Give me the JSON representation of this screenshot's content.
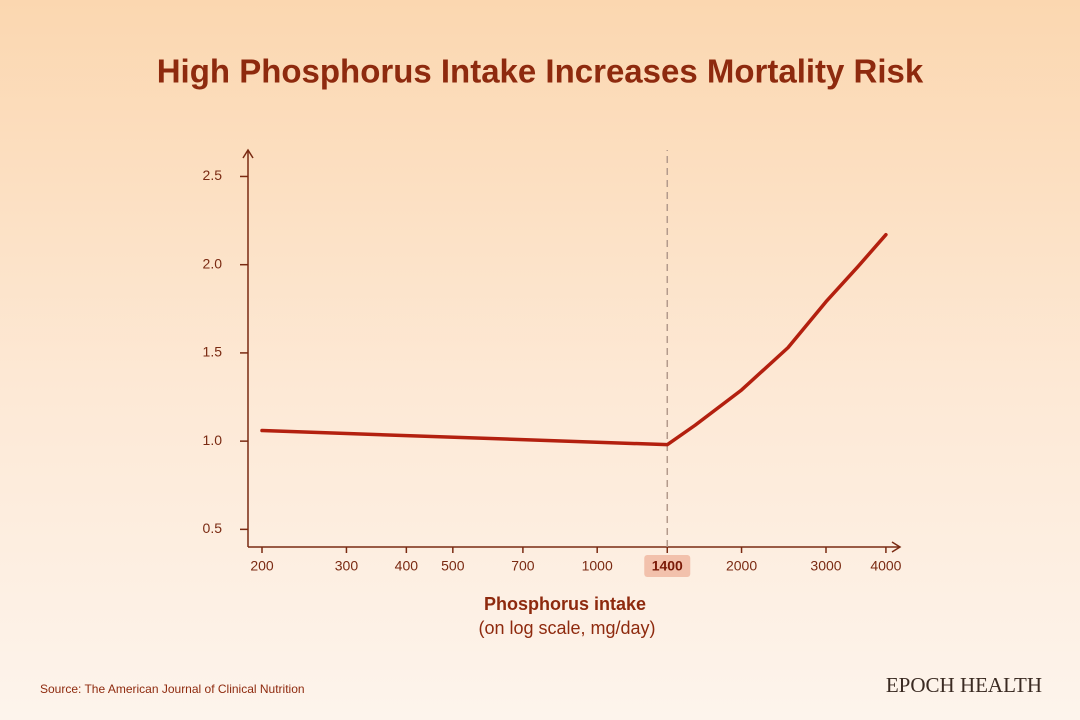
{
  "chart_data": {
    "type": "line",
    "title": "High Phosphorus Intake Increases Mortality Risk",
    "x_label": "Phosphorus intake",
    "x_sublabel": "(on log scale, mg/day)",
    "source": "Source: The American Journal of Clinical Nutrition",
    "brand": "EPOCH HEALTH",
    "x_scale": "log",
    "xlim": [
      187,
      4280
    ],
    "ylim": [
      0.4,
      2.65
    ],
    "xticks": [
      200,
      300,
      400,
      500,
      700,
      1000,
      1400,
      2000,
      3000,
      4000
    ],
    "yticks": [
      0.5,
      {
        "value": 1,
        "label": "1.0"
      },
      1.5,
      {
        "value": 2,
        "label": "2.0"
      },
      2.5
    ],
    "vline_x": 1400,
    "series": [
      {
        "color": "#b3200f",
        "x": [
          200,
          1400,
          1600,
          2000,
          2500,
          3000,
          3500,
          4000
        ],
        "values": [
          1.06,
          0.98,
          1.09,
          1.29,
          1.53,
          1.79,
          1.99,
          2.17
        ]
      }
    ]
  }
}
